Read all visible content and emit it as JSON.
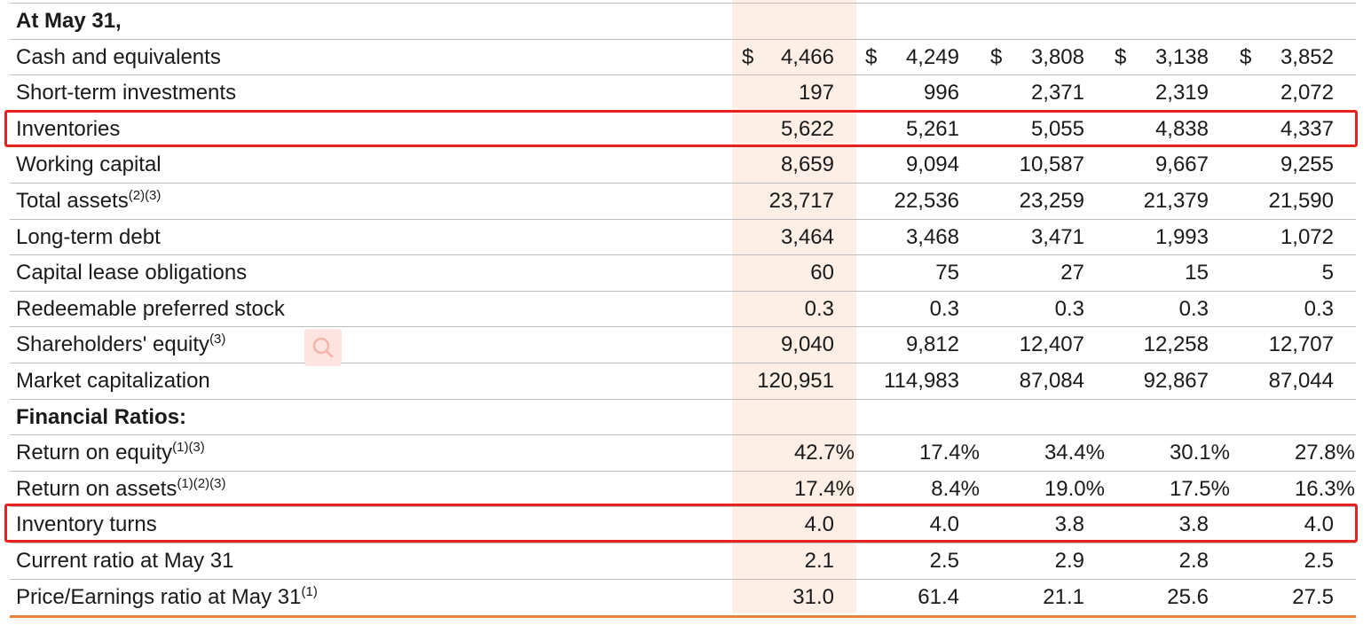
{
  "table": {
    "columns": 5,
    "rows": [
      {
        "label": "At May 31,",
        "sup": "",
        "bold": true,
        "values": [
          "",
          "",
          "",
          "",
          ""
        ],
        "dollar": false,
        "percent": false
      },
      {
        "label": "Cash and equivalents",
        "sup": "",
        "bold": false,
        "values": [
          "4,466",
          "4,249",
          "3,808",
          "3,138",
          "3,852"
        ],
        "dollar": true,
        "percent": false
      },
      {
        "label": "Short-term investments",
        "sup": "",
        "bold": false,
        "values": [
          "197",
          "996",
          "2,371",
          "2,319",
          "2,072"
        ],
        "dollar": false,
        "percent": false
      },
      {
        "label": "Inventories",
        "sup": "",
        "bold": false,
        "values": [
          "5,622",
          "5,261",
          "5,055",
          "4,838",
          "4,337"
        ],
        "dollar": false,
        "percent": false,
        "highlighted": true
      },
      {
        "label": "Working capital",
        "sup": "",
        "bold": false,
        "values": [
          "8,659",
          "9,094",
          "10,587",
          "9,667",
          "9,255"
        ],
        "dollar": false,
        "percent": false
      },
      {
        "label": "Total assets",
        "sup": "(2)(3)",
        "bold": false,
        "values": [
          "23,717",
          "22,536",
          "23,259",
          "21,379",
          "21,590"
        ],
        "dollar": false,
        "percent": false
      },
      {
        "label": "Long-term debt",
        "sup": "",
        "bold": false,
        "values": [
          "3,464",
          "3,468",
          "3,471",
          "1,993",
          "1,072"
        ],
        "dollar": false,
        "percent": false
      },
      {
        "label": "Capital lease obligations",
        "sup": "",
        "bold": false,
        "values": [
          "60",
          "75",
          "27",
          "15",
          "5"
        ],
        "dollar": false,
        "percent": false
      },
      {
        "label": "Redeemable preferred stock",
        "sup": "",
        "bold": false,
        "values": [
          "0.3",
          "0.3",
          "0.3",
          "0.3",
          "0.3"
        ],
        "dollar": false,
        "percent": false
      },
      {
        "label": "Shareholders' equity",
        "sup": "(3)",
        "bold": false,
        "values": [
          "9,040",
          "9,812",
          "12,407",
          "12,258",
          "12,707"
        ],
        "dollar": false,
        "percent": false
      },
      {
        "label": "Market capitalization",
        "sup": "",
        "bold": false,
        "values": [
          "120,951",
          "114,983",
          "87,084",
          "92,867",
          "87,044"
        ],
        "dollar": false,
        "percent": false
      },
      {
        "label": "Financial Ratios:",
        "sup": "",
        "bold": true,
        "values": [
          "",
          "",
          "",
          "",
          ""
        ],
        "dollar": false,
        "percent": false
      },
      {
        "label": "Return on equity",
        "sup": "(1)(3)",
        "bold": false,
        "values": [
          "42.7%",
          "17.4%",
          "34.4%",
          "30.1%",
          "27.8%"
        ],
        "dollar": false,
        "percent": true
      },
      {
        "label": "Return on assets",
        "sup": "(1)(2)(3)",
        "bold": false,
        "values": [
          "17.4%",
          "8.4%",
          "19.0%",
          "17.5%",
          "16.3%"
        ],
        "dollar": false,
        "percent": true
      },
      {
        "label": "Inventory turns",
        "sup": "",
        "bold": false,
        "values": [
          "4.0",
          "4.0",
          "3.8",
          "3.8",
          "4.0"
        ],
        "dollar": false,
        "percent": false,
        "highlighted": true
      },
      {
        "label": "Current ratio at May 31",
        "sup": "",
        "bold": false,
        "values": [
          "2.1",
          "2.5",
          "2.9",
          "2.8",
          "2.5"
        ],
        "dollar": false,
        "percent": false
      },
      {
        "label": "Price/Earnings ratio at May 31",
        "sup": "(1)",
        "bold": false,
        "values": [
          "31.0",
          "61.4",
          "21.1",
          "25.6",
          "27.5"
        ],
        "dollar": false,
        "percent": false
      }
    ],
    "currency_symbol": "$"
  },
  "colors": {
    "highlight_column": "#fdeee6",
    "highlight_box": "#e8201e",
    "bottom_rule": "#e8823a"
  },
  "icons": {
    "overlay": "search-icon"
  }
}
